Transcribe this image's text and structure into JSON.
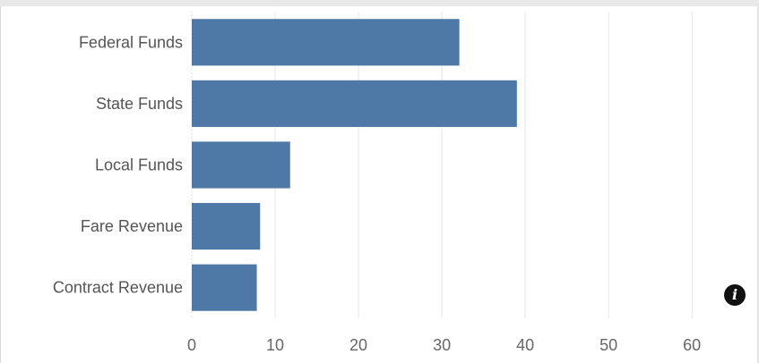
{
  "chart_data": {
    "type": "bar",
    "orientation": "horizontal",
    "categories": [
      "Federal Funds",
      "State Funds",
      "Local Funds",
      "Fare Revenue",
      "Contract Revenue"
    ],
    "values": [
      32.1,
      39.0,
      11.8,
      8.2,
      7.8
    ],
    "xlim": [
      0,
      66
    ],
    "xticks": [
      "0",
      "10",
      "20",
      "30",
      "40",
      "50",
      "60"
    ],
    "grid": true,
    "bar_color": "#4e79a7",
    "gridline_color": "#e6e6e6"
  },
  "info_icon": {
    "icon": "info-icon",
    "glyph": "i"
  }
}
